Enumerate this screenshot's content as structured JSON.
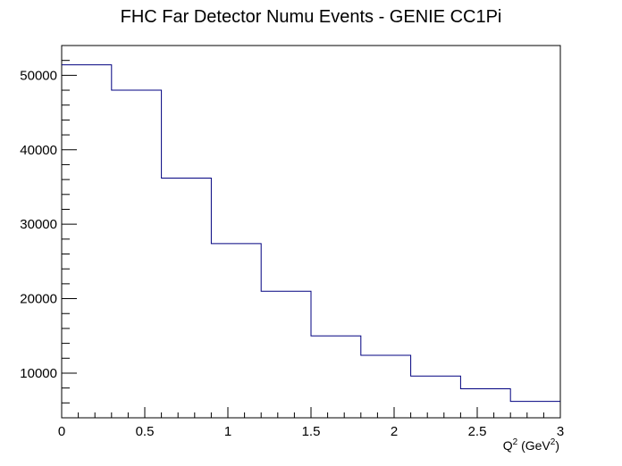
{
  "chart_data": {
    "type": "histogram",
    "title": "FHC Far Detector Numu Events - GENIE CC1Pi",
    "xlabel": {
      "base": "Q",
      "sup": "2",
      "mid": " (GeV",
      "sup2": "2",
      "end": ")"
    },
    "ylabel": "",
    "xlim": [
      0,
      3
    ],
    "ylim": [
      4000,
      54000
    ],
    "x_ticks": [
      {
        "value": 0,
        "label": "0"
      },
      {
        "value": 0.5,
        "label": "0.5"
      },
      {
        "value": 1,
        "label": "1"
      },
      {
        "value": 1.5,
        "label": "1.5"
      },
      {
        "value": 2,
        "label": "2"
      },
      {
        "value": 2.5,
        "label": "2.5"
      },
      {
        "value": 3,
        "label": "3"
      }
    ],
    "y_ticks": [
      {
        "value": 10000,
        "label": "10000"
      },
      {
        "value": 20000,
        "label": "20000"
      },
      {
        "value": 30000,
        "label": "30000"
      },
      {
        "value": 40000,
        "label": "40000"
      },
      {
        "value": 50000,
        "label": "50000"
      }
    ],
    "bin_edges": [
      0,
      0.3,
      0.6,
      0.9,
      1.2,
      1.5,
      1.8,
      2.1,
      2.4,
      2.7,
      3.0
    ],
    "series": [
      {
        "values": [
          51400,
          48000,
          36200,
          27400,
          21000,
          15000,
          12400,
          9600,
          7900,
          6200
        ],
        "color": "#000080"
      }
    ],
    "grid": false,
    "legend": "none"
  }
}
